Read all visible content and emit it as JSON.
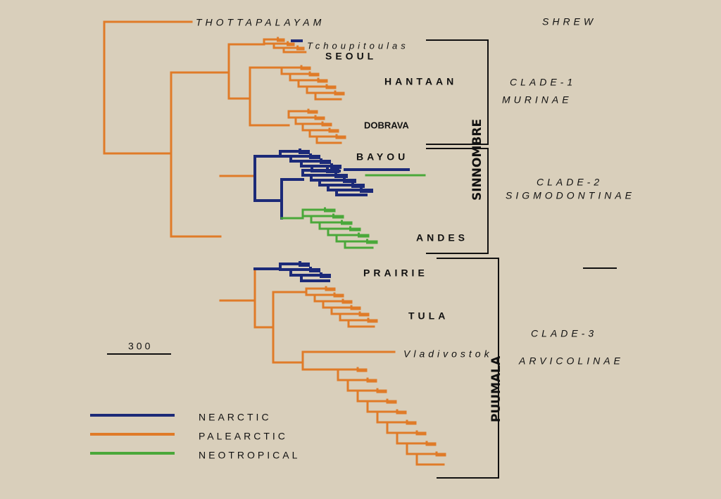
{
  "tree": {
    "outgroup": "THOTTAPALAYAM",
    "groups": [
      "Tchoupitoulas",
      "SEOUL",
      "HANTAAN",
      "DOBRAVA",
      "BAYOU",
      "SINNOMBRE",
      "ANDES",
      "PRAIRIE",
      "TULA",
      "Vladivostok",
      "PUUMALA"
    ]
  },
  "clades": [
    {
      "name": "SHREW"
    },
    {
      "name": "CLADE-1",
      "subfamily": "MURINAE"
    },
    {
      "name": "CLADE-2",
      "subfamily": "SIGMODONTINAE"
    },
    {
      "name": "CLADE-3",
      "subfamily": "ARVICOLINAE"
    }
  ],
  "scale": {
    "label": 300
  },
  "legend": [
    {
      "label": "NEARCTIC",
      "color": "#1c2a78"
    },
    {
      "label": "PALEARCTIC",
      "color": "#e07b28"
    },
    {
      "label": "NEOTROPICAL",
      "color": "#4aa83a"
    }
  ]
}
